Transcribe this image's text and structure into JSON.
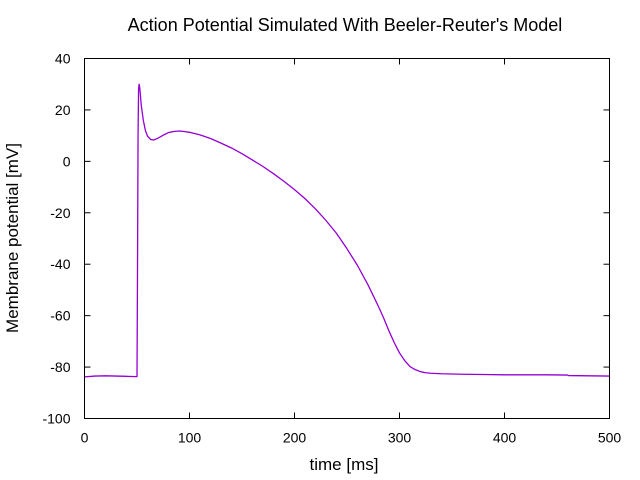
{
  "chart_data": {
    "type": "line",
    "title": "Action Potential Simulated With Beeler-Reuter's Model",
    "xlabel": "time [ms]",
    "ylabel": "Membrane potential [mV]",
    "xlim": [
      0,
      500
    ],
    "ylim": [
      -100,
      40
    ],
    "x_ticks": [
      0,
      100,
      200,
      300,
      400,
      500
    ],
    "y_ticks": [
      -100,
      -80,
      -60,
      -40,
      -20,
      0,
      20,
      40
    ],
    "grid": false,
    "legend": "none",
    "series": [
      {
        "color": "#9400d3",
        "x": [
          0,
          10,
          20,
          30,
          40,
          50,
          50.5,
          51,
          51.5,
          52,
          52.5,
          53,
          54,
          56,
          58,
          60,
          63,
          66,
          70,
          75,
          80,
          85,
          90,
          95,
          100,
          110,
          120,
          130,
          140,
          150,
          160,
          170,
          180,
          190,
          200,
          210,
          220,
          230,
          240,
          250,
          260,
          270,
          280,
          285,
          290,
          295,
          300,
          305,
          310,
          315,
          320,
          325,
          330,
          340,
          350,
          360,
          380,
          400,
          420,
          440,
          460,
          461,
          480,
          500
        ],
        "y": [
          -83.8,
          -83.5,
          -83.4,
          -83.5,
          -83.6,
          -83.7,
          -40,
          10,
          28,
          30,
          29,
          27,
          22,
          16,
          12,
          9.8,
          8.5,
          8.3,
          9,
          10.2,
          11.2,
          11.6,
          11.8,
          11.6,
          11.3,
          10.3,
          8.9,
          7.1,
          5.2,
          3.0,
          0.5,
          -2.0,
          -4.8,
          -7.8,
          -11.0,
          -14.5,
          -18.5,
          -23,
          -28,
          -34,
          -40.5,
          -48,
          -56.5,
          -61,
          -66,
          -70.5,
          -74.5,
          -77.5,
          -79.8,
          -81,
          -81.8,
          -82.2,
          -82.4,
          -82.6,
          -82.7,
          -82.8,
          -82.9,
          -83,
          -83,
          -83,
          -83.1,
          -83.3,
          -83.4,
          -83.5
        ]
      }
    ]
  }
}
